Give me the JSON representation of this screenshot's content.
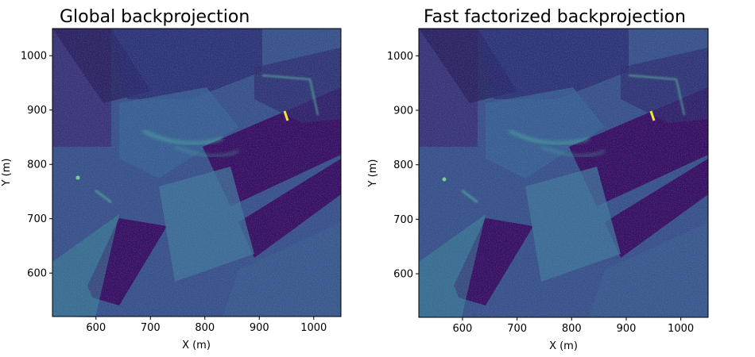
{
  "chart_data": [
    {
      "type": "heatmap",
      "title": "Global backprojection",
      "xlabel": "X (m)",
      "ylabel": "Y (m)",
      "xlim": [
        520,
        1050
      ],
      "ylim": [
        520,
        1050
      ],
      "xticks": [
        600,
        700,
        800,
        900,
        1000
      ],
      "yticks": [
        600,
        700,
        800,
        900,
        1000
      ],
      "colormap": "viridis",
      "colors": {
        "low": "#440154",
        "mid": "#31688e",
        "high": "#35b779",
        "peak": "#fde725"
      }
    },
    {
      "type": "heatmap",
      "title": "Fast factorized backprojection",
      "xlabel": "X (m)",
      "ylabel": "Y (m)",
      "xlim": [
        520,
        1050
      ],
      "ylim": [
        520,
        1050
      ],
      "xticks": [
        600,
        700,
        800,
        900,
        1000
      ],
      "yticks": [
        600,
        700,
        800,
        900,
        1000
      ],
      "colormap": "viridis",
      "colors": {
        "low": "#440154",
        "mid": "#31688e",
        "high": "#35b779",
        "peak": "#fde725"
      }
    }
  ]
}
